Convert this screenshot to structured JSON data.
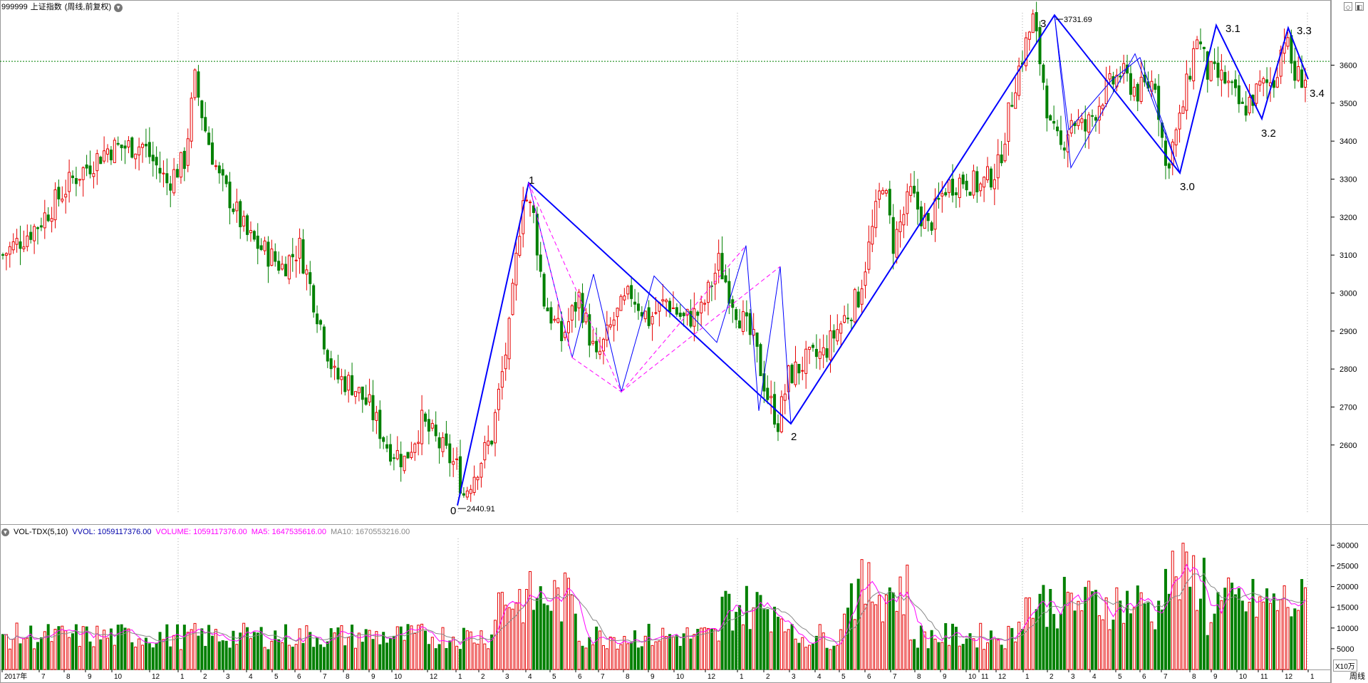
{
  "header": {
    "code": "999999",
    "name": "上证指数",
    "period_note": "(周线,前复权)"
  },
  "volume_header": {
    "indicator": "VOL-TDX(5,10)",
    "vvol_label": "VVOL: 1059117376.00",
    "volume_label": "VOLUME: 1059117376.00",
    "ma5_label": "MA5: 1647535616.00",
    "ma10_label": "MA10: 1670553216.00"
  },
  "colors": {
    "up": "#e60000",
    "down": "#008000",
    "wave_line": "#0000ff",
    "dash_line": "#ff00ff",
    "ma5": "#ff00ff",
    "ma10": "#888888",
    "grid": "#aaaaaa"
  },
  "price_axis_labels": [
    "3600",
    "3500",
    "3400",
    "3300",
    "3200",
    "3100",
    "3000",
    "2900",
    "2800",
    "2700",
    "2600"
  ],
  "volume_axis_labels": [
    "30000",
    "25000",
    "20000",
    "15000",
    "10000",
    "5000"
  ],
  "volume_unit": "X10万",
  "period_label": "周线",
  "x_axis_labels": [
    "2017年",
    "7",
    "8",
    "9",
    "10",
    "12",
    "1",
    "2",
    "3",
    "4",
    "5",
    "6",
    "7",
    "8",
    "9",
    "10",
    "12",
    "1",
    "2",
    "3",
    "4",
    "5",
    "6",
    "7",
    "8",
    "9",
    "10",
    "12",
    "1",
    "2",
    "3",
    "4",
    "5",
    "6",
    "7",
    "8",
    "9",
    "10",
    "11",
    "12",
    "1",
    "2",
    "3",
    "4",
    "5",
    "6",
    "7",
    "8",
    "9",
    "10",
    "11",
    "12",
    "1"
  ],
  "annotations": {
    "high_value": "3731.69",
    "low_value": "2440.91",
    "wave_labels": [
      "0",
      "1",
      "2",
      "3",
      "3.0",
      "3.1",
      "3.2",
      "3.3",
      "3.4"
    ]
  },
  "corner_icons": [
    "diamond-icon",
    "panel-toggle-icon"
  ],
  "chart_data": {
    "type": "candlestick",
    "title": "999999 上证指数(周线,前复权)",
    "ylim": [
      2420,
      3760
    ],
    "volume_ylim": [
      0,
      31000
    ],
    "price_ticks": [
      3600,
      3500,
      3400,
      3300,
      3200,
      3100,
      3000,
      2900,
      2800,
      2700,
      2600
    ],
    "volume_ticks": [
      30000,
      25000,
      20000,
      15000,
      10000,
      5000
    ],
    "reference_price": 3610,
    "max": 3731.69,
    "min": 2440.91,
    "waves": [
      "0",
      "1",
      "2",
      "3",
      "3.0",
      "3.1",
      "3.2",
      "3.3",
      "3.4"
    ],
    "grid": true
  }
}
